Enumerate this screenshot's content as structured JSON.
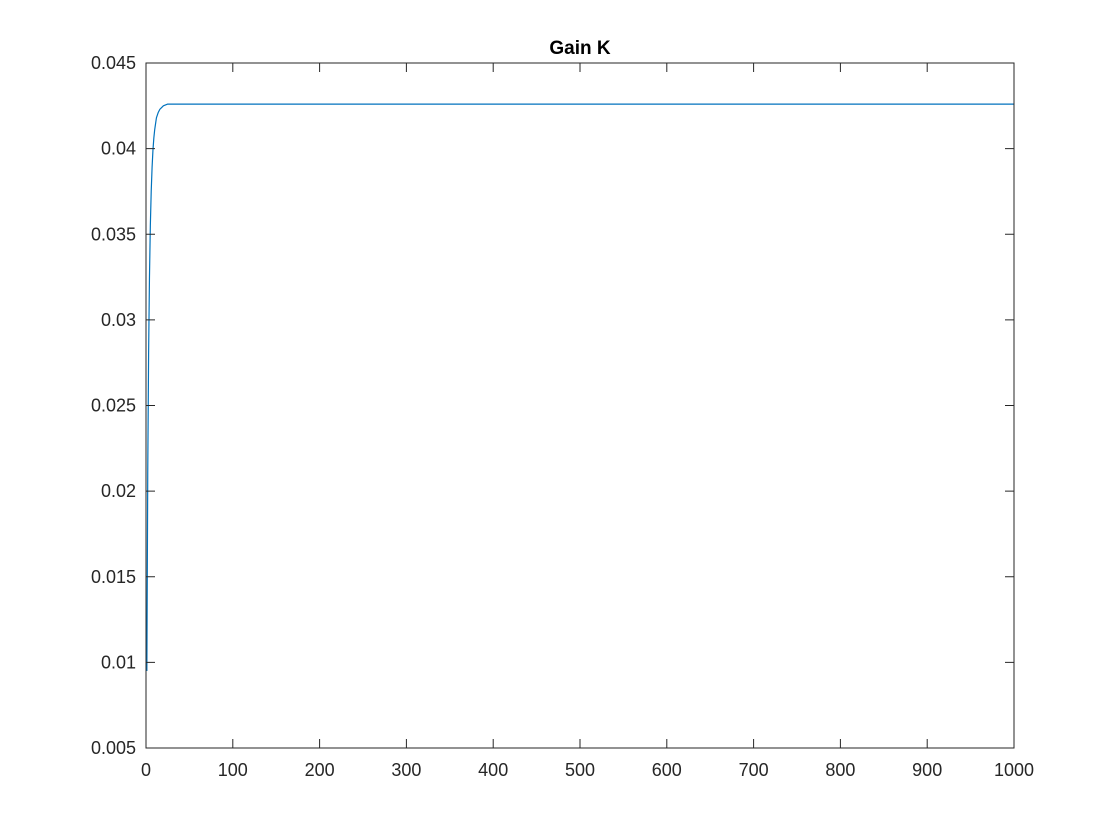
{
  "chart_data": {
    "type": "line",
    "title": "Gain K",
    "xlabel": "",
    "ylabel": "",
    "xlim": [
      0,
      1000
    ],
    "ylim": [
      0.005,
      0.045
    ],
    "x_ticks": [
      0,
      100,
      200,
      300,
      400,
      500,
      600,
      700,
      800,
      900,
      1000
    ],
    "x_tick_labels": [
      "0",
      "100",
      "200",
      "300",
      "400",
      "500",
      "600",
      "700",
      "800",
      "900",
      "1000"
    ],
    "y_ticks": [
      0.005,
      0.01,
      0.015,
      0.02,
      0.025,
      0.03,
      0.035,
      0.04,
      0.045
    ],
    "y_tick_labels": [
      "0.005",
      "0.01",
      "0.015",
      "0.02",
      "0.025",
      "0.03",
      "0.035",
      "0.04",
      "0.045"
    ],
    "grid": false,
    "series": [
      {
        "color": "#0072bd",
        "x": [
          1,
          2,
          3,
          4,
          5,
          6,
          7,
          8,
          9,
          10,
          12,
          14,
          16,
          18,
          20,
          25,
          30,
          40,
          60,
          100,
          200,
          400,
          600,
          800,
          1000
        ],
        "y": [
          0.0095,
          0.021,
          0.028,
          0.0325,
          0.0355,
          0.0375,
          0.0389,
          0.0399,
          0.0406,
          0.0411,
          0.0418,
          0.0421,
          0.0423,
          0.0424,
          0.0425,
          0.0426,
          0.0426,
          0.0426,
          0.0426,
          0.0426,
          0.0426,
          0.0426,
          0.0426,
          0.0426,
          0.0426
        ]
      }
    ]
  }
}
